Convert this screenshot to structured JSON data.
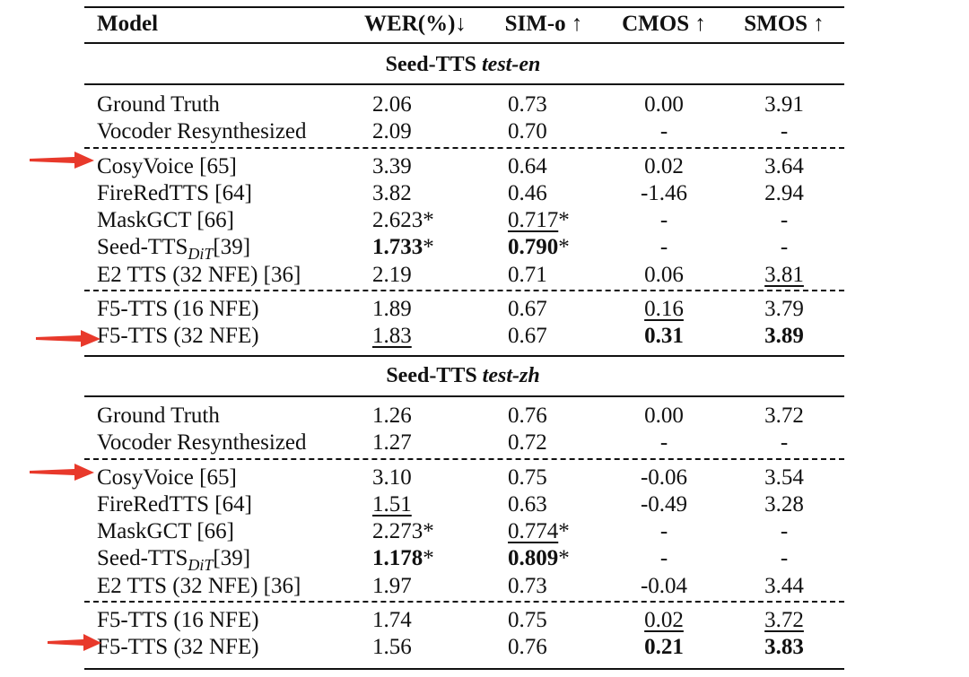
{
  "headers": {
    "model": "Model",
    "wer": "WER(%)↓",
    "sim": "SIM-o ↑",
    "cmos": "CMOS ↑",
    "smos": "SMOS ↑"
  },
  "sections": [
    {
      "title_main": "Seed-TTS ",
      "title_italic": "test-en",
      "rows": [
        {
          "model": "Ground Truth",
          "model_sub": "",
          "model_ref": "",
          "wer": "2.06",
          "wer_star": "",
          "sim": "0.73",
          "sim_star": "",
          "cmos": "0.00",
          "smos": "3.91"
        },
        {
          "model": "Vocoder Resynthesized",
          "model_sub": "",
          "model_ref": "",
          "wer": "2.09",
          "wer_star": "",
          "sim": "0.70",
          "sim_star": "",
          "cmos": "-",
          "smos": "-"
        },
        {
          "model": "CosyVoice [65]",
          "model_sub": "",
          "model_ref": "",
          "wer": "3.39",
          "wer_star": "",
          "sim": "0.64",
          "sim_star": "",
          "cmos": "0.02",
          "smos": "3.64"
        },
        {
          "model": "FireRedTTS [64]",
          "model_sub": "",
          "model_ref": "",
          "wer": "3.82",
          "wer_star": "",
          "sim": "0.46",
          "sim_star": "",
          "cmos": "-1.46",
          "smos": "2.94"
        },
        {
          "model": "MaskGCT [66]",
          "model_sub": "",
          "model_ref": "",
          "wer": "2.623",
          "wer_star": "*",
          "sim": "0.717",
          "sim_star": "*",
          "cmos": "-",
          "smos": "-"
        },
        {
          "model": "Seed-TTS",
          "model_sub": "DiT",
          "model_ref": "[39]",
          "wer": "1.733",
          "wer_star": "*",
          "sim": "0.790",
          "sim_star": "*",
          "cmos": "-",
          "smos": "-"
        },
        {
          "model": "E2 TTS (32 NFE) [36]",
          "model_sub": "",
          "model_ref": "",
          "wer": "2.19",
          "wer_star": "",
          "sim": "0.71",
          "sim_star": "",
          "cmos": "0.06",
          "smos": "3.81"
        },
        {
          "model": "F5-TTS (16 NFE)",
          "model_sub": "",
          "model_ref": "",
          "wer": "1.89",
          "wer_star": "",
          "sim": "0.67",
          "sim_star": "",
          "cmos": "0.16",
          "smos": "3.79"
        },
        {
          "model": "F5-TTS (32 NFE)",
          "model_sub": "",
          "model_ref": "",
          "wer": "1.83",
          "wer_star": "",
          "sim": "0.67",
          "sim_star": "",
          "cmos": "0.31",
          "smos": "3.89"
        }
      ]
    },
    {
      "title_main": "Seed-TTS ",
      "title_italic": "test-zh",
      "rows": [
        {
          "model": "Ground Truth",
          "model_sub": "",
          "model_ref": "",
          "wer": "1.26",
          "wer_star": "",
          "sim": "0.76",
          "sim_star": "",
          "cmos": "0.00",
          "smos": "3.72"
        },
        {
          "model": "Vocoder Resynthesized",
          "model_sub": "",
          "model_ref": "",
          "wer": "1.27",
          "wer_star": "",
          "sim": "0.72",
          "sim_star": "",
          "cmos": "-",
          "smos": "-"
        },
        {
          "model": "CosyVoice [65]",
          "model_sub": "",
          "model_ref": "",
          "wer": "3.10",
          "wer_star": "",
          "sim": "0.75",
          "sim_star": "",
          "cmos": "-0.06",
          "smos": "3.54"
        },
        {
          "model": "FireRedTTS [64]",
          "model_sub": "",
          "model_ref": "",
          "wer": "1.51",
          "wer_star": "",
          "sim": "0.63",
          "sim_star": "",
          "cmos": "-0.49",
          "smos": "3.28"
        },
        {
          "model": "MaskGCT [66]",
          "model_sub": "",
          "model_ref": "",
          "wer": "2.273",
          "wer_star": "*",
          "sim": "0.774",
          "sim_star": "*",
          "cmos": "-",
          "smos": "-"
        },
        {
          "model": "Seed-TTS",
          "model_sub": "DiT",
          "model_ref": "[39]",
          "wer": "1.178",
          "wer_star": "*",
          "sim": "0.809",
          "sim_star": "*",
          "cmos": "-",
          "smos": "-"
        },
        {
          "model": "E2 TTS (32 NFE) [36]",
          "model_sub": "",
          "model_ref": "",
          "wer": "1.97",
          "wer_star": "",
          "sim": "0.73",
          "sim_star": "",
          "cmos": "-0.04",
          "smos": "3.44"
        },
        {
          "model": "F5-TTS (16 NFE)",
          "model_sub": "",
          "model_ref": "",
          "wer": "1.74",
          "wer_star": "",
          "sim": "0.75",
          "sim_star": "",
          "cmos": "0.02",
          "smos": "3.72"
        },
        {
          "model": "F5-TTS (32 NFE)",
          "model_sub": "",
          "model_ref": "",
          "wer": "1.56",
          "wer_star": "",
          "sim": "0.76",
          "sim_star": "",
          "cmos": "0.21",
          "smos": "3.83"
        }
      ]
    }
  ],
  "colors": {
    "arrow": "#e8392b",
    "text": "#111111"
  }
}
